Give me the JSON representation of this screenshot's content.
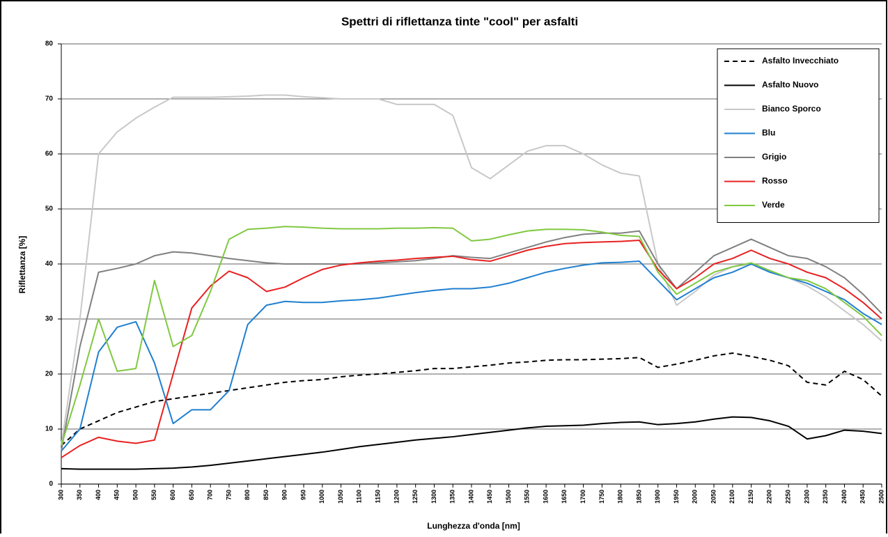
{
  "chart_data": {
    "type": "line",
    "title": "Spettri di riflettanza tinte \"cool\" per asfalti",
    "x_label": "Lunghezza  d'onda [nm]",
    "y_label": "Riflettanza [%]",
    "x": [
      300,
      350,
      400,
      450,
      500,
      550,
      600,
      650,
      700,
      750,
      800,
      850,
      900,
      950,
      1000,
      1050,
      1100,
      1150,
      1200,
      1250,
      1300,
      1350,
      1400,
      1450,
      1500,
      1550,
      1600,
      1650,
      1700,
      1750,
      1800,
      1850,
      1900,
      1950,
      2000,
      2050,
      2100,
      2150,
      2200,
      2250,
      2300,
      2350,
      2400,
      2450,
      2500
    ],
    "xlim": [
      300,
      2500
    ],
    "xticks": [
      300,
      350,
      400,
      450,
      500,
      550,
      600,
      650,
      700,
      750,
      800,
      850,
      900,
      950,
      1000,
      1050,
      1100,
      1150,
      1200,
      1250,
      1300,
      1350,
      1400,
      1450,
      1500,
      1550,
      1600,
      1650,
      1700,
      1750,
      1800,
      1850,
      1900,
      1950,
      2000,
      2050,
      2100,
      2150,
      2200,
      2250,
      2300,
      2350,
      2400,
      2450,
      2500
    ],
    "ylim": [
      0,
      80
    ],
    "yticks": [
      0,
      10,
      20,
      30,
      40,
      50,
      60,
      70,
      80
    ],
    "grid": true,
    "legend": "top-right",
    "series": [
      {
        "name": "Asfalto Invecchiato",
        "color": "#000000",
        "dash": true,
        "values": [
          7,
          10,
          11.5,
          13,
          14,
          15,
          15.5,
          16,
          16.5,
          17,
          17.5,
          18,
          18.5,
          18.8,
          19,
          19.5,
          19.8,
          20,
          20.3,
          20.6,
          21,
          21,
          21.3,
          21.6,
          22,
          22.2,
          22.5,
          22.6,
          22.6,
          22.7,
          22.8,
          23,
          21.2,
          21.8,
          22.5,
          23.3,
          23.8,
          23.2,
          22.5,
          21.5,
          18.5,
          18,
          20.5,
          19,
          16
        ]
      },
      {
        "name": "Asfalto Nuovo",
        "color": "#000000",
        "values": [
          2.8,
          2.7,
          2.7,
          2.7,
          2.7,
          2.8,
          2.9,
          3.1,
          3.4,
          3.8,
          4.2,
          4.6,
          5,
          5.4,
          5.8,
          6.3,
          6.8,
          7.2,
          7.6,
          8,
          8.3,
          8.6,
          9,
          9.4,
          9.8,
          10.2,
          10.5,
          10.6,
          10.7,
          11,
          11.2,
          11.3,
          10.8,
          11,
          11.3,
          11.8,
          12.2,
          12.1,
          11.5,
          10.5,
          8.2,
          8.8,
          9.8,
          9.6,
          9.2
        ]
      },
      {
        "name": "Bianco Sporco",
        "color": "#c8c8c8",
        "values": [
          7,
          30,
          60,
          64,
          66.5,
          68.5,
          70.3,
          70.3,
          70.3,
          70.4,
          70.5,
          70.7,
          70.7,
          70.4,
          70.2,
          70,
          70,
          70,
          69,
          69,
          69,
          67,
          57.5,
          55.5,
          58,
          60.5,
          61.5,
          61.5,
          60,
          58,
          56.5,
          56,
          40,
          32.5,
          35,
          38,
          39.5,
          40,
          38.5,
          37.5,
          36,
          34,
          31.5,
          29,
          26
        ]
      },
      {
        "name": "Blu",
        "color": "#1f7fd0",
        "values": [
          6,
          10,
          24,
          28.5,
          29.5,
          22,
          11,
          13.5,
          13.5,
          17,
          29,
          32.5,
          33.2,
          33,
          33,
          33.3,
          33.5,
          33.8,
          34.3,
          34.8,
          35.2,
          35.5,
          35.5,
          35.8,
          36.5,
          37.5,
          38.5,
          39.2,
          39.8,
          40.2,
          40.3,
          40.5,
          37,
          33.5,
          35.5,
          37.5,
          38.5,
          40,
          38.5,
          37.5,
          36.5,
          35,
          33.5,
          31,
          29
        ]
      },
      {
        "name": "Grigio",
        "color": "#808080",
        "values": [
          6,
          25,
          38.5,
          39.2,
          40,
          41.5,
          42.2,
          42,
          41.5,
          41,
          40.6,
          40.2,
          40,
          40,
          40,
          40,
          40,
          40.2,
          40.4,
          40.6,
          41,
          41.5,
          41.2,
          41,
          42,
          43,
          44,
          44.8,
          45.4,
          45.6,
          45.6,
          46,
          40,
          35.5,
          38.5,
          41.5,
          43,
          44.5,
          43,
          41.5,
          41,
          39.5,
          37.5,
          34.5,
          31
        ]
      },
      {
        "name": "Rosso",
        "color": "#e82020",
        "values": [
          4.8,
          7,
          8.5,
          7.8,
          7.4,
          8,
          20,
          32,
          36,
          38.7,
          37.5,
          35,
          35.8,
          37.5,
          39,
          39.8,
          40.2,
          40.5,
          40.7,
          41,
          41.2,
          41.4,
          40.8,
          40.5,
          41.5,
          42.5,
          43.2,
          43.7,
          43.9,
          44,
          44.1,
          44.3,
          39,
          35.5,
          37.5,
          40,
          41,
          42.5,
          41,
          40,
          38.5,
          37.5,
          35.5,
          33,
          30
        ]
      },
      {
        "name": "Verde",
        "color": "#80c840",
        "values": [
          7,
          18,
          30,
          20.5,
          21,
          37,
          25,
          27,
          35,
          44.5,
          46.3,
          46.5,
          46.8,
          46.7,
          46.5,
          46.4,
          46.4,
          46.4,
          46.5,
          46.5,
          46.6,
          46.5,
          44.2,
          44.5,
          45.3,
          46,
          46.3,
          46.3,
          46.2,
          45.8,
          45.2,
          45,
          38.5,
          34.5,
          36.5,
          38.5,
          39.5,
          40.2,
          38.8,
          37.5,
          37,
          35.5,
          33,
          30.5,
          27
        ]
      }
    ]
  }
}
